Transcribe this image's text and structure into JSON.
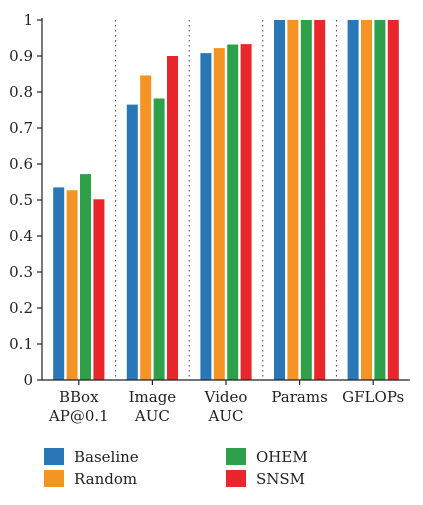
{
  "chart_data": {
    "type": "bar",
    "categories": [
      [
        "BBox",
        "AP@0.1"
      ],
      [
        "Image",
        "AUC"
      ],
      [
        "Video",
        "AUC"
      ],
      [
        "Params"
      ],
      [
        "GFLOPs"
      ]
    ],
    "series": [
      {
        "name": "Baseline",
        "color": "#2a77b8",
        "values": [
          0.535,
          0.765,
          0.908,
          1.0,
          1.0
        ]
      },
      {
        "name": "Random",
        "color": "#f39424",
        "values": [
          0.527,
          0.846,
          0.922,
          1.0,
          1.0
        ]
      },
      {
        "name": "OHEM",
        "color": "#2ea04a",
        "values": [
          0.572,
          0.782,
          0.932,
          1.0,
          1.0
        ]
      },
      {
        "name": "SNSM",
        "color": "#e8262c",
        "values": [
          0.502,
          0.9,
          0.933,
          1.0,
          1.0
        ]
      }
    ],
    "ylim": [
      0,
      1
    ],
    "yticks": [
      "0",
      "0.1",
      "0.2",
      "0.3",
      "0.4",
      "0.5",
      "0.6",
      "0.7",
      "0.8",
      "0.9",
      "1"
    ],
    "grid": "vertical dotted",
    "legend_position": "bottom"
  }
}
